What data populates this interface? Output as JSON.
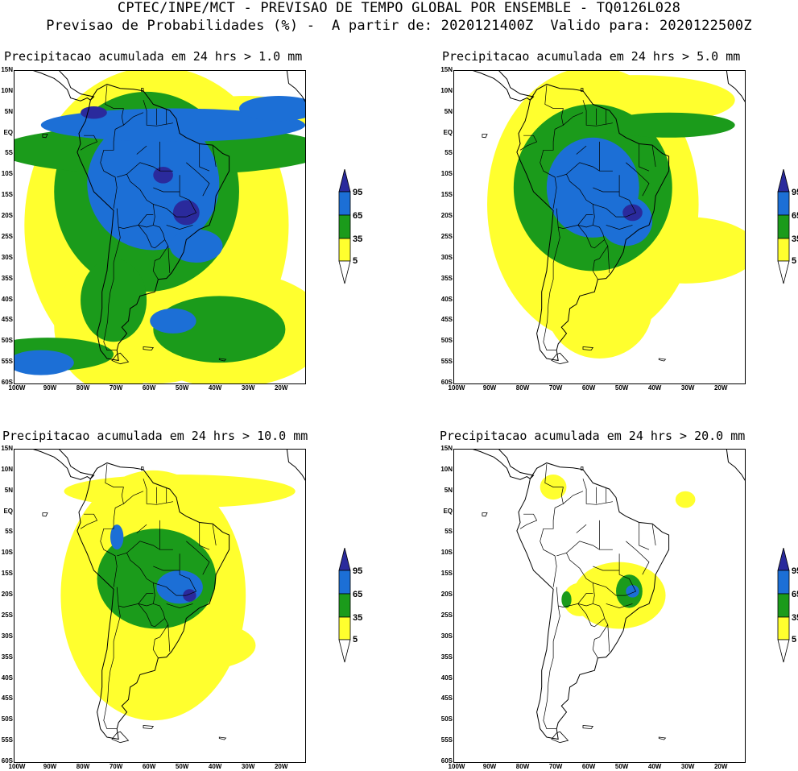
{
  "header": {
    "line1": "CPTEC/INPE/MCT - PREVISAO DE TEMPO GLOBAL POR ENSEMBLE - TQ0126L028",
    "line2": "Previsao de Probabilidades (%) -  A partir de: 2020121400Z  Valido para: 2020122500Z"
  },
  "colors": {
    "class_5_35": "#ffff2e",
    "class_35_65": "#1b9b1b",
    "class_65_95": "#1c6fd6",
    "class_95_plus": "#2a2a9c"
  },
  "legend": {
    "labels": [
      "95",
      "65",
      "35",
      "5"
    ]
  },
  "axes": {
    "lat_labels": [
      "15N",
      "10N",
      "5N",
      "EQ",
      "5S",
      "10S",
      "15S",
      "20S",
      "25S",
      "30S",
      "35S",
      "40S",
      "45S",
      "50S",
      "55S",
      "60S"
    ],
    "lon_labels": [
      "100W",
      "90W",
      "80W",
      "70W",
      "60W",
      "50W",
      "40W",
      "30W",
      "20W"
    ]
  },
  "panels": [
    {
      "title": "Precipitacao acumulada em 24 hrs > 1.0 mm"
    },
    {
      "title": "Precipitacao acumulada em 24 hrs > 5.0 mm"
    },
    {
      "title": "Precipitacao acumulada em 24 hrs > 10.0 mm"
    },
    {
      "title": "Precipitacao acumulada em 24 hrs > 20.0 mm"
    }
  ]
}
